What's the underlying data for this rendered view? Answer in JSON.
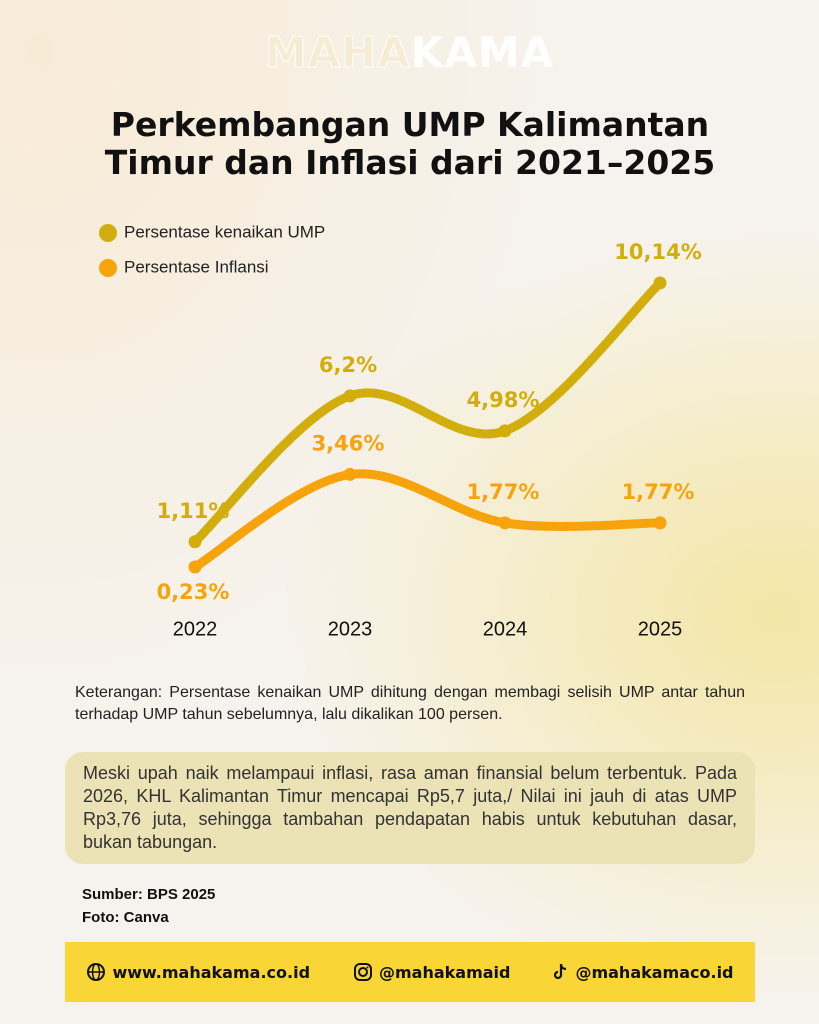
{
  "brand": {
    "light": "MAHA",
    "bold": "KAMA"
  },
  "chart_data": {
    "type": "line",
    "title": "Perkembangan UMP Kalimantan Timur dan Inflasi dari 2021–2025",
    "categories": [
      "2022",
      "2023",
      "2024",
      "2025"
    ],
    "series": [
      {
        "name": "Persentase kenaikan UMP",
        "color": "#d2ae0c",
        "values": [
          1.11,
          6.2,
          4.98,
          10.14
        ],
        "value_labels": [
          "1,11%",
          "6,2%",
          "4,98%",
          "10,14%"
        ]
      },
      {
        "name": "Persentase Inflansi",
        "color": "#f7a40c",
        "values": [
          0.23,
          3.46,
          1.77,
          1.77
        ],
        "value_labels": [
          "0,23%",
          "3,46%",
          "1,77%",
          "1,77%"
        ]
      }
    ]
  },
  "note": "Keterangan:  Persentase kenaikan UMP dihitung dengan membagi selisih UMP antar tahun terhadap UMP tahun sebelumnya, lalu dikalikan 100 persen.",
  "highlight": "Meski upah naik melampaui inflasi, rasa aman finansial belum terbentuk. Pada 2026, KHL Kalimantan Timur mencapai Rp5,7 juta,/ Nilai ini jauh di atas UMP Rp3,76 juta, sehingga tambahan pendapatan habis untuk kebutuhan dasar, bukan tabungan.",
  "sources": [
    "Sumber: BPS 2025",
    "Foto: Canva"
  ],
  "footer": {
    "website": "www.mahakama.co.id",
    "instagram": "@mahakamaid",
    "tiktok": "@mahakamaco.id"
  }
}
